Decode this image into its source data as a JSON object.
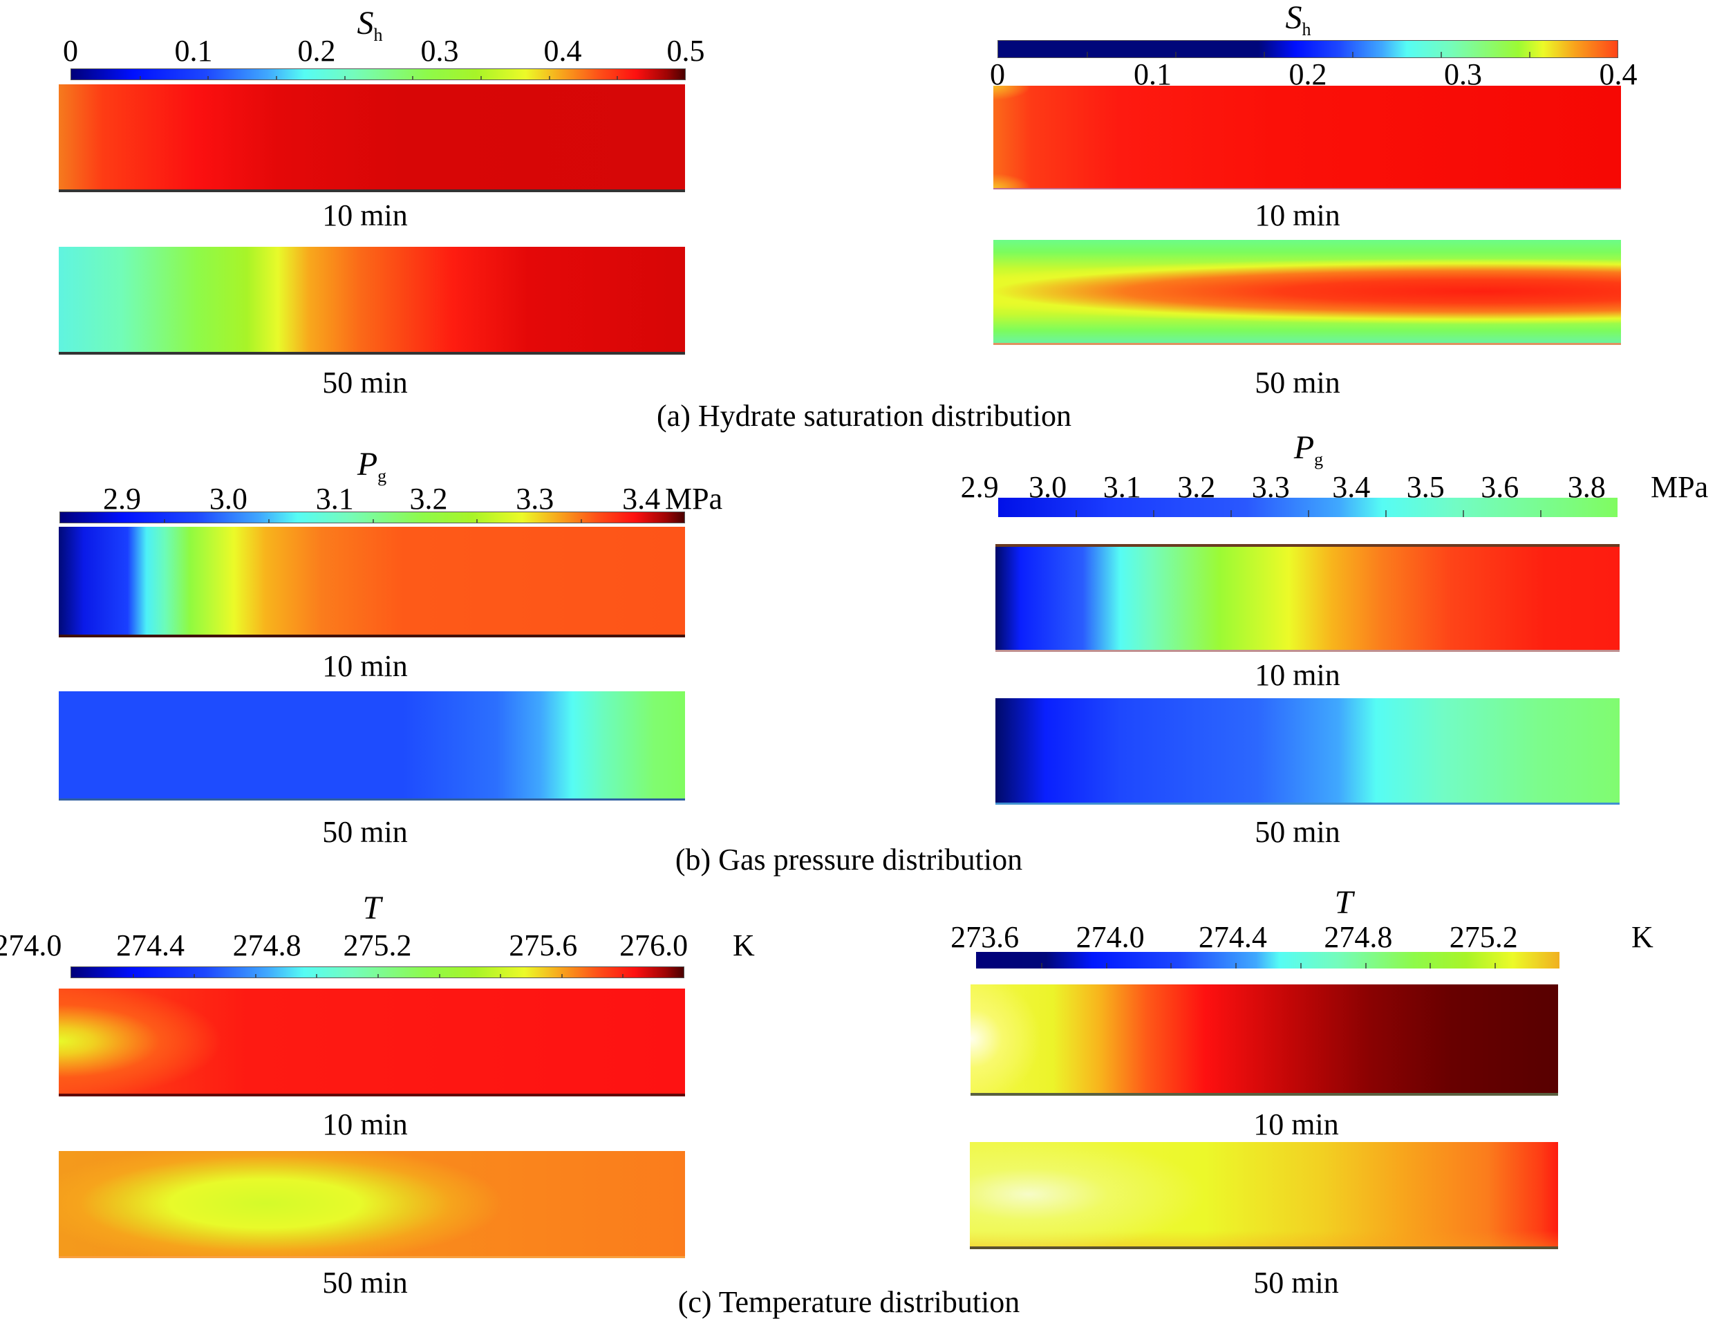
{
  "chart_data": [
    {
      "type": "heatmap",
      "id": "sh_left",
      "title": "S_h",
      "variable": "S",
      "subscript": "h",
      "unit": "",
      "colormap": "jet",
      "range": [
        0,
        0.5
      ],
      "ticks": [
        "0",
        "0.1",
        "0.2",
        "0.3",
        "0.4",
        "0.5"
      ],
      "snapshots": [
        {
          "label": "10 min",
          "description": "Mostly 0.43–0.47 (red to dark red); orange (~0.38) at left inlet edge"
        },
        {
          "label": "50 min",
          "description": "Cyan-green (~0.25) at left, yellow front (~0.35) at ~40% length, red (~0.45) toward right"
        }
      ]
    },
    {
      "type": "heatmap",
      "id": "sh_right",
      "title": "S_h",
      "variable": "S",
      "subscript": "h",
      "unit": "",
      "colormap": "jet-truncated",
      "range": [
        0,
        0.4
      ],
      "ticks": [
        "0",
        "0.1",
        "0.2",
        "0.3",
        "0.4"
      ],
      "snapshots": [
        {
          "label": "10 min",
          "description": "Nearly uniform red (~0.39); orange/yellow at left corners"
        },
        {
          "label": "50 min",
          "description": "Green (~0.3) along walls and left end, yellow band, orange-red core (~0.38) extending to right"
        }
      ]
    },
    {
      "type": "heatmap",
      "id": "pg_left",
      "title": "P_g",
      "variable": "P",
      "subscript": "g",
      "unit": "MPa",
      "colormap": "jet",
      "range": [
        2.85,
        3.45
      ],
      "ticks": [
        "2.9",
        "3.0",
        "3.1",
        "3.2",
        "3.3",
        "3.4"
      ],
      "snapshots": [
        {
          "label": "10 min",
          "description": "Dark blue (~2.86) at left, cyan (~3.05), yellow (~3.2), orange (~3.3) across most of length"
        },
        {
          "label": "50 min",
          "description": "Blue (~2.95) across most of length, cyan (~3.05) near 85%, green (~3.1) at right end"
        }
      ]
    },
    {
      "type": "heatmap",
      "id": "pg_right",
      "title": "P_g",
      "variable": "P",
      "subscript": "g",
      "unit": "MPa",
      "colormap": "jet-blue-green",
      "range": [
        2.9,
        3.8
      ],
      "ticks": [
        "2.9",
        "3.0",
        "3.1",
        "3.2",
        "3.3",
        "3.4",
        "3.5",
        "3.6",
        "3.8"
      ],
      "snapshots": [
        {
          "label": "10 min",
          "description": "Dark blue at left, cyan at ~20%, green, yellow at ~45%, orange to red at right"
        },
        {
          "label": "50 min",
          "description": "Dark blue at left, blue through ~55%, cyan at ~62%, light green at right end"
        }
      ]
    },
    {
      "type": "heatmap",
      "id": "t_left",
      "title": "T",
      "variable": "T",
      "subscript": "",
      "unit": "K",
      "colormap": "jet",
      "range": [
        274.0,
        276.0
      ],
      "ticks": [
        "274.0",
        "274.4",
        "274.8",
        "275.2",
        "275.6",
        "276.0"
      ],
      "snapshots": [
        {
          "label": "10 min",
          "description": "Yellow (~275.2) at left center, red (~275.7) over most of domain"
        },
        {
          "label": "50 min",
          "description": "Yellow-green (~275.1) elongated core at left-center, orange (~275.4) toward right and walls"
        }
      ]
    },
    {
      "type": "heatmap",
      "id": "t_right",
      "title": "T",
      "variable": "T",
      "subscript": "",
      "unit": "K",
      "colormap": "hot",
      "range": [
        273.6,
        275.4
      ],
      "ticks": [
        "273.6",
        "274.0",
        "274.4",
        "274.8",
        "275.2"
      ],
      "snapshots": [
        {
          "label": "10 min",
          "description": "Pale yellow/white at left, yellow, red at ~40%, dark red/maroon at right"
        },
        {
          "label": "50 min",
          "description": "Pale yellow at left, yellow across most, orange then red at right end"
        }
      ]
    }
  ],
  "captions": {
    "a": "(a) Hydrate saturation distribution",
    "b": "(b) Gas pressure distribution",
    "c": "(c) Temperature distribution"
  },
  "time_labels": {
    "t10": "10 min",
    "t50": "50 min"
  }
}
